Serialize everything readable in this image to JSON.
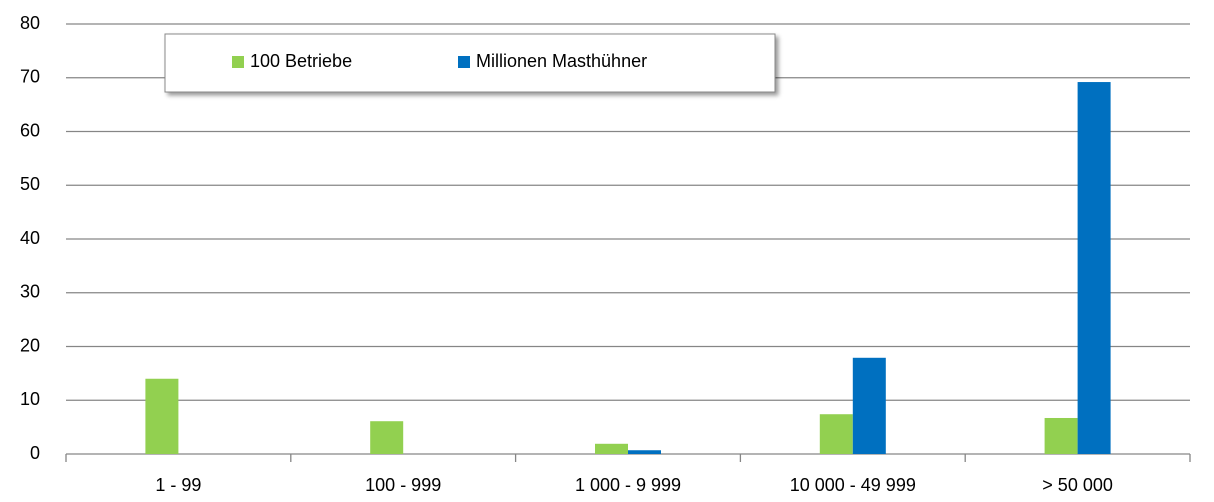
{
  "chart_data": {
    "type": "bar",
    "categories": [
      "1 - 99",
      "100 - 999",
      "1 000 - 9 999",
      "10 000 - 49 999",
      "> 50 000"
    ],
    "series": [
      {
        "name": "100 Betriebe",
        "color": "#92d050",
        "values": [
          14,
          6.1,
          1.9,
          7.4,
          6.7
        ]
      },
      {
        "name": "Millionen Masthühner",
        "color": "#0070c0",
        "values": [
          0,
          0,
          0.7,
          17.9,
          69.2
        ]
      }
    ],
    "ylim": [
      0,
      80
    ],
    "yticks": [
      0,
      10,
      20,
      30,
      40,
      50,
      60,
      70,
      80
    ],
    "grid": true
  }
}
